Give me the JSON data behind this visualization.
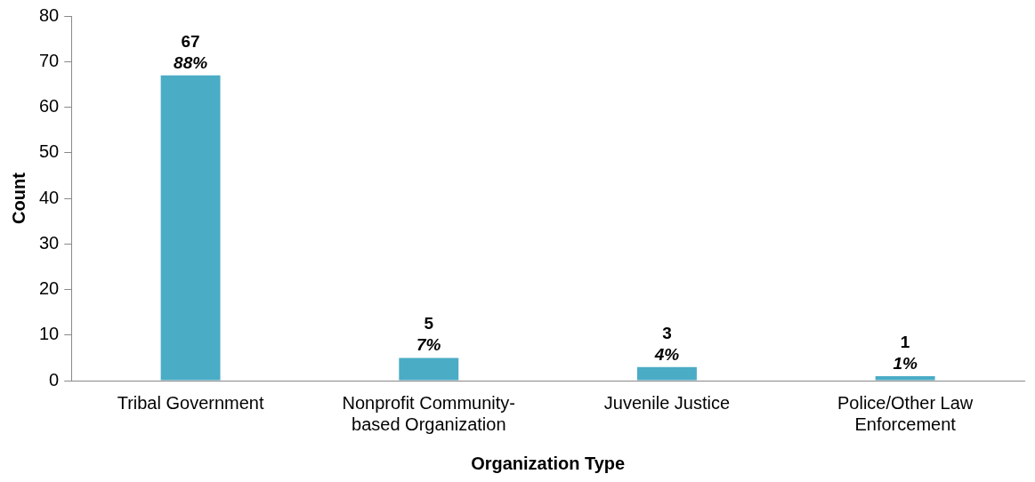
{
  "chart_data": {
    "type": "bar",
    "xlabel": "Organization Type",
    "ylabel": "Count",
    "categories": [
      "Tribal Government",
      "Nonprofit Community-based Organization",
      "Juvenile Justice",
      "Police/Other Law Enforcement"
    ],
    "values": [
      67,
      5,
      3,
      1
    ],
    "color": "#4bacc6",
    "data_labels": true,
    "annotations": [
      {
        "text": "88%",
        "x": "Tribal Government",
        "y": 67
      },
      {
        "text": "7%",
        "x": "Nonprofit Community-based Organization",
        "y": 5
      },
      {
        "text": "4%",
        "x": "Juvenile Justice",
        "y": 3
      },
      {
        "text": "1%",
        "x": "Police/Other Law Enforcement",
        "y": 1
      }
    ],
    "ylim": [
      0,
      80
    ],
    "yticks": [
      0,
      10,
      20,
      30,
      40,
      50,
      60,
      70,
      80
    ],
    "grid": false,
    "legend": false
  }
}
